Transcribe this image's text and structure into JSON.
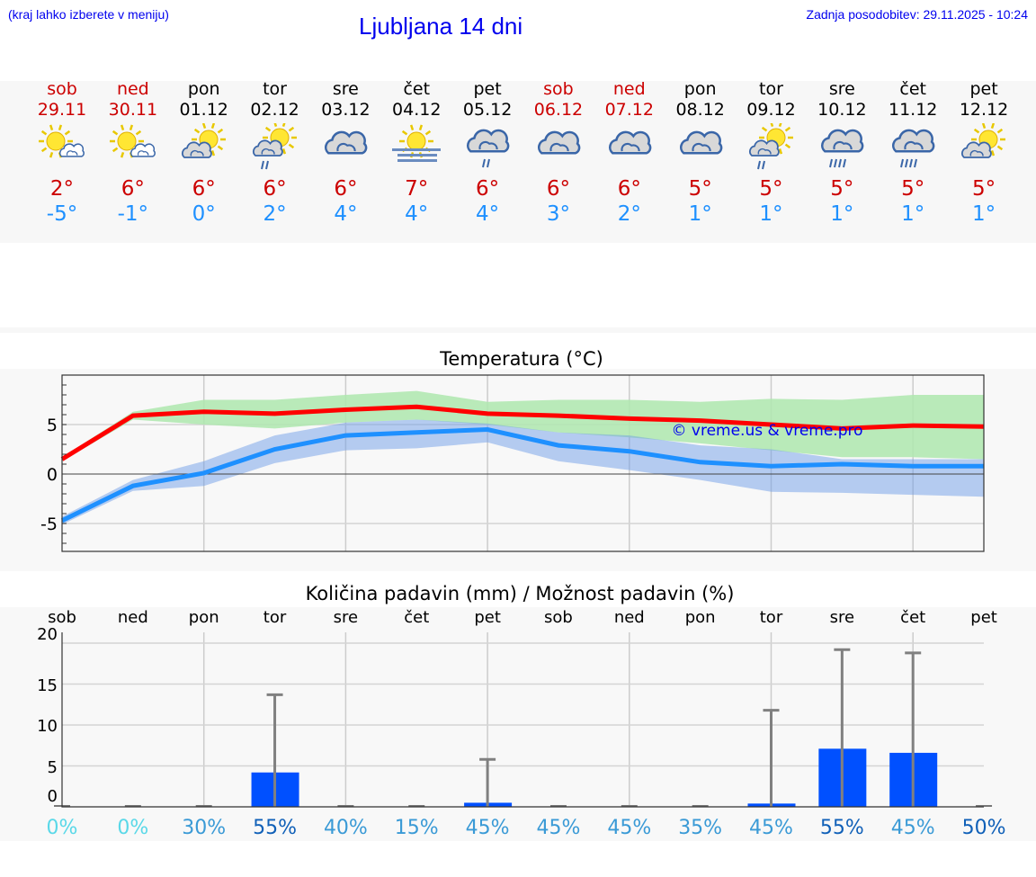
{
  "header": {
    "hint": "(kraj lahko izberete v meniju)",
    "title": "Ljubljana 14 dni",
    "updated": "Zadnja posodobitev: 29.11.2025 - 10:24"
  },
  "days": [
    {
      "name": "sob",
      "date": "29.11",
      "weekend": true,
      "icon": "sun-small-cloud",
      "max": "2°",
      "min": "-5°"
    },
    {
      "name": "ned",
      "date": "30.11",
      "weekend": true,
      "icon": "sun-small-cloud",
      "max": "6°",
      "min": "-1°"
    },
    {
      "name": "pon",
      "date": "01.12",
      "weekend": false,
      "icon": "sun-behind-cloud",
      "max": "6°",
      "min": "0°"
    },
    {
      "name": "tor",
      "date": "02.12",
      "weekend": false,
      "icon": "sun-cloud-rain",
      "max": "6°",
      "min": "2°"
    },
    {
      "name": "sre",
      "date": "03.12",
      "weekend": false,
      "icon": "cloudy",
      "max": "6°",
      "min": "4°"
    },
    {
      "name": "čet",
      "date": "04.12",
      "weekend": false,
      "icon": "sun-fog",
      "max": "7°",
      "min": "4°"
    },
    {
      "name": "pet",
      "date": "05.12",
      "weekend": false,
      "icon": "cloudy-light-rain",
      "max": "6°",
      "min": "4°"
    },
    {
      "name": "sob",
      "date": "06.12",
      "weekend": true,
      "icon": "cloudy",
      "max": "6°",
      "min": "3°"
    },
    {
      "name": "ned",
      "date": "07.12",
      "weekend": true,
      "icon": "cloudy",
      "max": "6°",
      "min": "2°"
    },
    {
      "name": "pon",
      "date": "08.12",
      "weekend": false,
      "icon": "cloudy",
      "max": "5°",
      "min": "1°"
    },
    {
      "name": "tor",
      "date": "09.12",
      "weekend": false,
      "icon": "sun-cloud-rain",
      "max": "5°",
      "min": "1°"
    },
    {
      "name": "sre",
      "date": "10.12",
      "weekend": false,
      "icon": "cloudy-rain",
      "max": "5°",
      "min": "1°"
    },
    {
      "name": "čet",
      "date": "11.12",
      "weekend": false,
      "icon": "cloudy-rain",
      "max": "5°",
      "min": "1°"
    },
    {
      "name": "pet",
      "date": "12.12",
      "weekend": false,
      "icon": "sun-behind-cloud",
      "max": "5°",
      "min": "1°"
    }
  ],
  "colors": {
    "max": "#ff0000",
    "min": "#1e90ff",
    "max_band": "#aee8ae",
    "min_band": "#aec6f2",
    "bar": "#0050ff",
    "whisker": "#808080"
  },
  "chart_data": [
    {
      "type": "line",
      "title": "Temperatura (°C)",
      "watermark": "© vreme.us & vreme.pro",
      "ylim": [
        -8,
        10
      ],
      "yticks": [
        -5,
        0,
        5
      ],
      "grid": true,
      "series": [
        {
          "values": [
            1.5,
            5.9,
            6.3,
            6.1,
            6.5,
            6.8,
            6.1,
            5.9,
            5.6,
            5.4,
            5.0,
            4.6,
            4.9,
            4.8
          ],
          "band_upper": [
            1.7,
            6.3,
            7.5,
            7.5,
            8.0,
            8.4,
            7.3,
            7.5,
            7.5,
            7.3,
            7.6,
            7.5,
            8.0,
            8.0
          ],
          "band_lower": [
            1.3,
            5.5,
            5.0,
            4.6,
            5.2,
            5.5,
            5.0,
            4.2,
            3.7,
            3.1,
            2.4,
            1.7,
            1.7,
            1.5
          ]
        },
        {
          "values": [
            -4.7,
            -1.2,
            0.1,
            2.5,
            3.9,
            4.2,
            4.5,
            2.9,
            2.3,
            1.2,
            0.8,
            1.0,
            0.8,
            0.8
          ],
          "band_upper": [
            -4.3,
            -0.6,
            1.3,
            3.9,
            5.2,
            5.5,
            5.1,
            4.2,
            3.9,
            2.9,
            2.5,
            1.5,
            1.5,
            1.5
          ],
          "band_lower": [
            -5.1,
            -1.7,
            -1.2,
            1.1,
            2.4,
            2.6,
            3.2,
            1.3,
            0.4,
            -0.6,
            -1.8,
            -1.9,
            -2.1,
            -2.3
          ]
        }
      ]
    },
    {
      "type": "bar",
      "title": "Količina padavin (mm) / Možnost padavin (%)",
      "categories": [
        "sob",
        "ned",
        "pon",
        "tor",
        "sre",
        "čet",
        "pet",
        "sob",
        "ned",
        "pon",
        "tor",
        "sre",
        "čet",
        "pet"
      ],
      "ylim": [
        0,
        20
      ],
      "yticks": [
        0,
        5,
        10,
        15,
        20
      ],
      "values": [
        0,
        0,
        0,
        4.2,
        0,
        0,
        0.5,
        0,
        0,
        0,
        0.4,
        7.1,
        6.6,
        0
      ],
      "whisker_max": [
        0,
        0,
        0,
        13.7,
        0,
        0,
        5.8,
        0,
        0,
        0,
        11.8,
        19.2,
        18.8,
        0
      ],
      "probability": [
        "0%",
        "0%",
        "30%",
        "55%",
        "40%",
        "15%",
        "45%",
        "45%",
        "45%",
        "35%",
        "45%",
        "55%",
        "45%",
        "50%"
      ],
      "probability_values": [
        0,
        0,
        30,
        55,
        40,
        15,
        45,
        45,
        45,
        35,
        45,
        55,
        45,
        50
      ]
    }
  ]
}
